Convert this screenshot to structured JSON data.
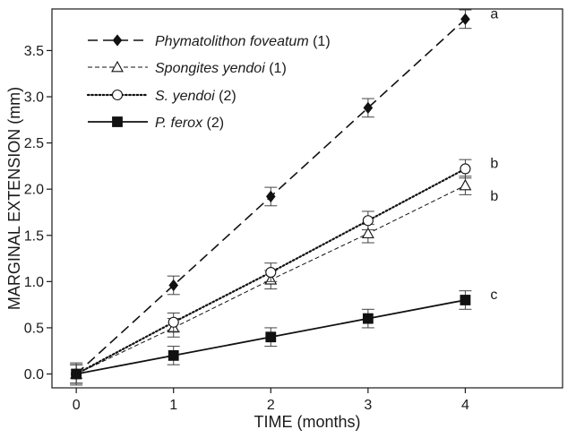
{
  "chart_data": {
    "type": "line",
    "title": "",
    "xlabel": "TIME (months)",
    "ylabel": "MARGINAL EXTENSION (mm)",
    "xlim": [
      -0.25,
      5
    ],
    "ylim": [
      -0.15,
      3.95
    ],
    "x_ticks": [
      "0",
      "1",
      "2",
      "3",
      "4"
    ],
    "y_ticks": [
      "0.0",
      "0.5",
      "1.0",
      "1.5",
      "2.0",
      "2.5",
      "3.0",
      "3.5"
    ],
    "grid": false,
    "legend_position": "top-left",
    "x": [
      0,
      1,
      2,
      3,
      4
    ],
    "series": [
      {
        "name_italic": "Phymatolithon foveatum",
        "name_suffix": " (1)",
        "marker": "diamond-filled",
        "line": "long-dash",
        "values": [
          0.0,
          0.96,
          1.92,
          2.88,
          3.84
        ],
        "errors": [
          0.1,
          0.1,
          0.1,
          0.1,
          0.1
        ],
        "group_letter": "a"
      },
      {
        "name_italic": "Spongites yendoi",
        "name_suffix": " (1)",
        "marker": "triangle-open",
        "line": "short-dash",
        "values": [
          0.0,
          0.5,
          1.02,
          1.52,
          2.04
        ],
        "errors": [
          0.1,
          0.1,
          0.1,
          0.1,
          0.1
        ],
        "group_letter": "b"
      },
      {
        "name_italic": "S. yendoi",
        "name_suffix": " (2)",
        "marker": "circle-open",
        "line": "dotted",
        "values": [
          0.0,
          0.56,
          1.1,
          1.66,
          2.22
        ],
        "errors": [
          0.1,
          0.1,
          0.1,
          0.1,
          0.1
        ],
        "group_letter": "b"
      },
      {
        "name_italic": "P. ferox",
        "name_suffix": " (2)",
        "marker": "square-filled",
        "line": "solid",
        "values": [
          0.0,
          0.2,
          0.4,
          0.6,
          0.8
        ],
        "errors": [
          0.12,
          0.1,
          0.1,
          0.1,
          0.1
        ],
        "group_letter": "c"
      }
    ]
  }
}
